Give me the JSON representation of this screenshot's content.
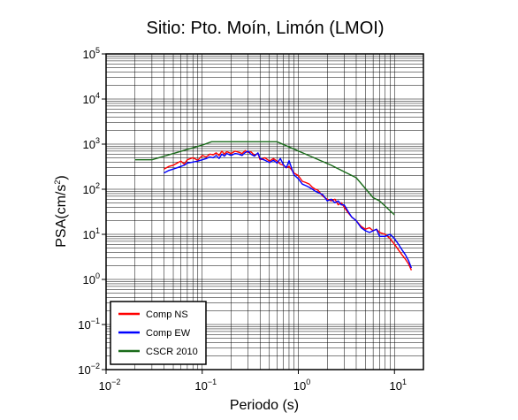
{
  "chart_data": {
    "type": "line",
    "title": "Sitio: Pto. Moín, Limón (LMOI)",
    "xlabel": "Periodo (s)",
    "ylabel": {
      "base": "PSA(cm/s",
      "sup": "2",
      "end": ")"
    },
    "xscale": "log",
    "yscale": "log",
    "xlim": [
      0.01,
      20
    ],
    "ylim": [
      0.01,
      100000
    ],
    "grid": true,
    "legend_position": "bottom-left",
    "x_ticks": [
      {
        "value": 0.01,
        "base": "10",
        "exp": "−2"
      },
      {
        "value": 0.1,
        "base": "10",
        "exp": "−1"
      },
      {
        "value": 1,
        "base": "10",
        "exp": "0"
      },
      {
        "value": 10,
        "base": "10",
        "exp": "1"
      }
    ],
    "y_ticks": [
      {
        "value": 0.01,
        "base": "10",
        "exp": "−2"
      },
      {
        "value": 0.1,
        "base": "10",
        "exp": "−1"
      },
      {
        "value": 1,
        "base": "10",
        "exp": "0"
      },
      {
        "value": 10,
        "base": "10",
        "exp": "1"
      },
      {
        "value": 100,
        "base": "10",
        "exp": "2"
      },
      {
        "value": 1000,
        "base": "10",
        "exp": "3"
      },
      {
        "value": 10000,
        "base": "10",
        "exp": "4"
      },
      {
        "value": 100000,
        "base": "10",
        "exp": "5"
      }
    ],
    "series": [
      {
        "name": "Comp NS",
        "color": "#ff0000",
        "x": [
          0.04,
          0.045,
          0.05,
          0.055,
          0.06,
          0.065,
          0.07,
          0.08,
          0.09,
          0.1,
          0.11,
          0.12,
          0.13,
          0.14,
          0.15,
          0.16,
          0.17,
          0.18,
          0.2,
          0.22,
          0.24,
          0.26,
          0.28,
          0.3,
          0.32,
          0.35,
          0.38,
          0.4,
          0.45,
          0.5,
          0.55,
          0.6,
          0.65,
          0.7,
          0.75,
          0.8,
          0.9,
          1.0,
          1.1,
          1.2,
          1.3,
          1.4,
          1.5,
          1.6,
          1.8,
          2.0,
          2.2,
          2.4,
          2.6,
          2.8,
          3.0,
          3.3,
          3.6,
          4.0,
          4.5,
          5.0,
          5.5,
          6.0,
          6.5,
          7.0,
          8.0,
          9.0,
          10.0,
          11.0,
          12.0,
          13.0,
          14.0,
          15.0
        ],
        "y": [
          280,
          320,
          340,
          380,
          420,
          360,
          450,
          500,
          440,
          560,
          520,
          600,
          580,
          640,
          560,
          700,
          600,
          680,
          620,
          700,
          660,
          620,
          720,
          650,
          680,
          560,
          620,
          450,
          500,
          420,
          480,
          420,
          360,
          340,
          300,
          320,
          230,
          200,
          150,
          140,
          130,
          110,
          100,
          95,
          70,
          60,
          55,
          60,
          45,
          50,
          40,
          30,
          24,
          20,
          15,
          13,
          14,
          12,
          13,
          11,
          10,
          8,
          6,
          4.5,
          3.5,
          2.8,
          2.2,
          1.6
        ]
      },
      {
        "name": "Comp EW",
        "color": "#0000ff",
        "x": [
          0.04,
          0.045,
          0.05,
          0.055,
          0.06,
          0.065,
          0.07,
          0.08,
          0.09,
          0.1,
          0.11,
          0.12,
          0.13,
          0.14,
          0.15,
          0.16,
          0.17,
          0.18,
          0.2,
          0.22,
          0.24,
          0.26,
          0.28,
          0.3,
          0.32,
          0.35,
          0.38,
          0.4,
          0.45,
          0.5,
          0.55,
          0.6,
          0.65,
          0.7,
          0.75,
          0.8,
          0.9,
          1.0,
          1.1,
          1.2,
          1.3,
          1.4,
          1.5,
          1.6,
          1.8,
          2.0,
          2.2,
          2.4,
          2.6,
          2.8,
          3.0,
          3.3,
          3.6,
          4.0,
          4.5,
          5.0,
          5.5,
          6.0,
          6.5,
          7.0,
          8.0,
          9.0,
          10.0,
          11.0,
          12.0,
          13.0,
          14.0,
          15.0
        ],
        "y": [
          230,
          260,
          280,
          300,
          320,
          340,
          380,
          400,
          420,
          450,
          480,
          520,
          500,
          560,
          480,
          600,
          540,
          620,
          560,
          620,
          600,
          560,
          650,
          700,
          600,
          540,
          640,
          480,
          440,
          390,
          440,
          380,
          480,
          350,
          300,
          430,
          210,
          170,
          130,
          120,
          110,
          100,
          90,
          85,
          75,
          55,
          60,
          50,
          55,
          45,
          45,
          32,
          24,
          20,
          14,
          12,
          11,
          12,
          13,
          9,
          9,
          10,
          8,
          6,
          4.5,
          3.5,
          2.6,
          1.8
        ]
      },
      {
        "name": "CSCR 2010",
        "color": "#1a6b1a",
        "x": [
          0.02,
          0.03,
          0.1,
          0.125,
          0.6,
          2.2,
          4.0,
          6.0,
          7.0,
          10.0
        ],
        "y": [
          450,
          450,
          950,
          1130,
          1130,
          340,
          180,
          65,
          55,
          27
        ]
      }
    ]
  }
}
